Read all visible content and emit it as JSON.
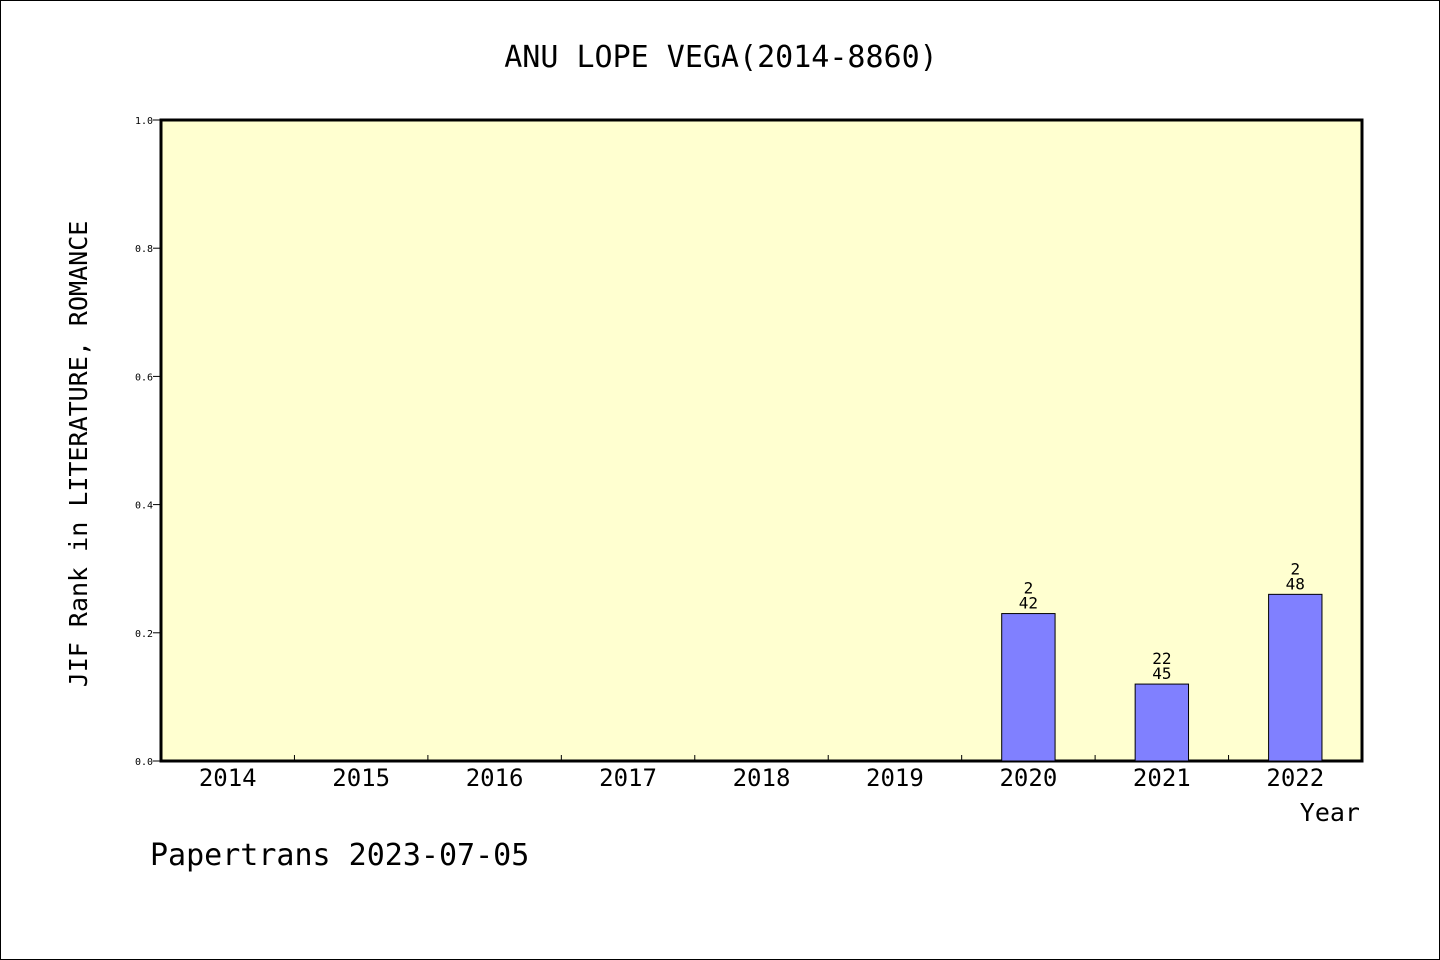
{
  "chart_data": {
    "type": "bar",
    "title": "ANU LOPE VEGA(2014-8860)",
    "xlabel": "Year",
    "ylabel": "JIF Rank in LITERATURE, ROMANCE",
    "categories": [
      "2014",
      "2015",
      "2016",
      "2017",
      "2018",
      "2019",
      "2020",
      "2021",
      "2022"
    ],
    "values": [
      null,
      null,
      null,
      null,
      null,
      null,
      0.23,
      0.12,
      0.26
    ],
    "bar_labels": [
      null,
      null,
      null,
      null,
      null,
      null,
      {
        "rank": "2",
        "total": "42"
      },
      {
        "rank": "22",
        "total": "45"
      },
      {
        "rank": "2",
        "total": "48"
      }
    ],
    "ylim": [
      0,
      1.0
    ],
    "yticks": [
      "0.0",
      "0.2",
      "0.4",
      "0.6",
      "0.8",
      "1.0"
    ],
    "grid": false,
    "colors": {
      "plot_background": "#ffffd0",
      "bar_fill": "#8080ff",
      "bar_stroke": "#000000"
    }
  },
  "footer": "Papertrans 2023-07-05"
}
